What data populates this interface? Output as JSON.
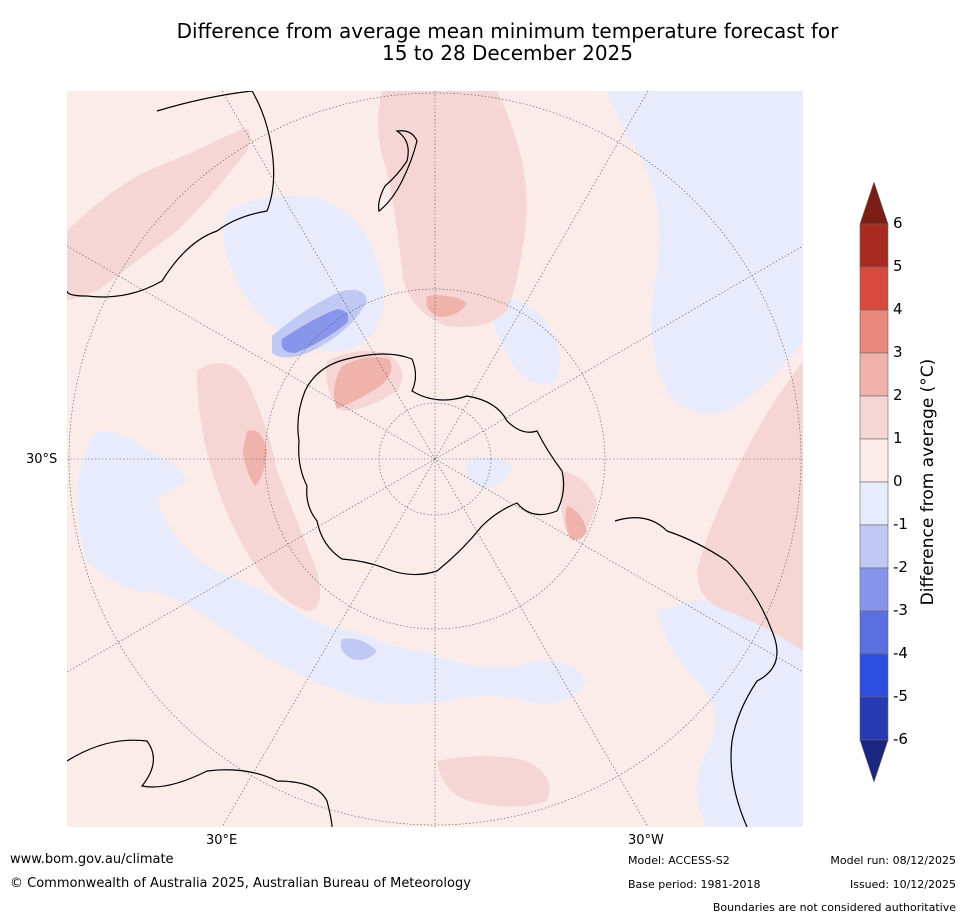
{
  "title_line1": "Difference from average mean minimum temperature forecast for",
  "title_line2": "15 to 28 December 2025",
  "map": {
    "projection": "south polar stereographic",
    "lat_label": "30°S",
    "lon_labels": [
      "30°E",
      "30°W"
    ]
  },
  "colorbar": {
    "label": "Difference from average (°C)",
    "ticks": [
      "6",
      "5",
      "4",
      "3",
      "2",
      "1",
      "0",
      "-1",
      "-2",
      "-3",
      "-4",
      "-5",
      "-6"
    ],
    "colors": {
      "above_6": "#7a1e16",
      "5_to_6": "#a92a21",
      "4_to_5": "#d94a3e",
      "3_to_4": "#e8877c",
      "2_to_3": "#efb3ac",
      "1_to_2": "#f5d6d4",
      "0_to_1": "#fbecea",
      "m1_to_0": "#e8ebfb",
      "m2_to_m1": "#c1c8f3",
      "m3_to_m2": "#8796ea",
      "m4_to_m3": "#5b6fe0",
      "m5_to_m4": "#2f4ee0",
      "m6_to_m5": "#263ab4",
      "below_m6": "#1b2680"
    }
  },
  "footer": {
    "website": "www.bom.gov.au/climate",
    "copyright": "© Commonwealth of Australia 2025, Australian Bureau of Meteorology",
    "model": "Model: ACCESS-S2",
    "base_period": "Base period: 1981-2018",
    "model_run": "Model run: 08/12/2025",
    "issued": "Issued: 10/12/2025",
    "disclaimer": "Boundaries are not considered authoritative"
  }
}
